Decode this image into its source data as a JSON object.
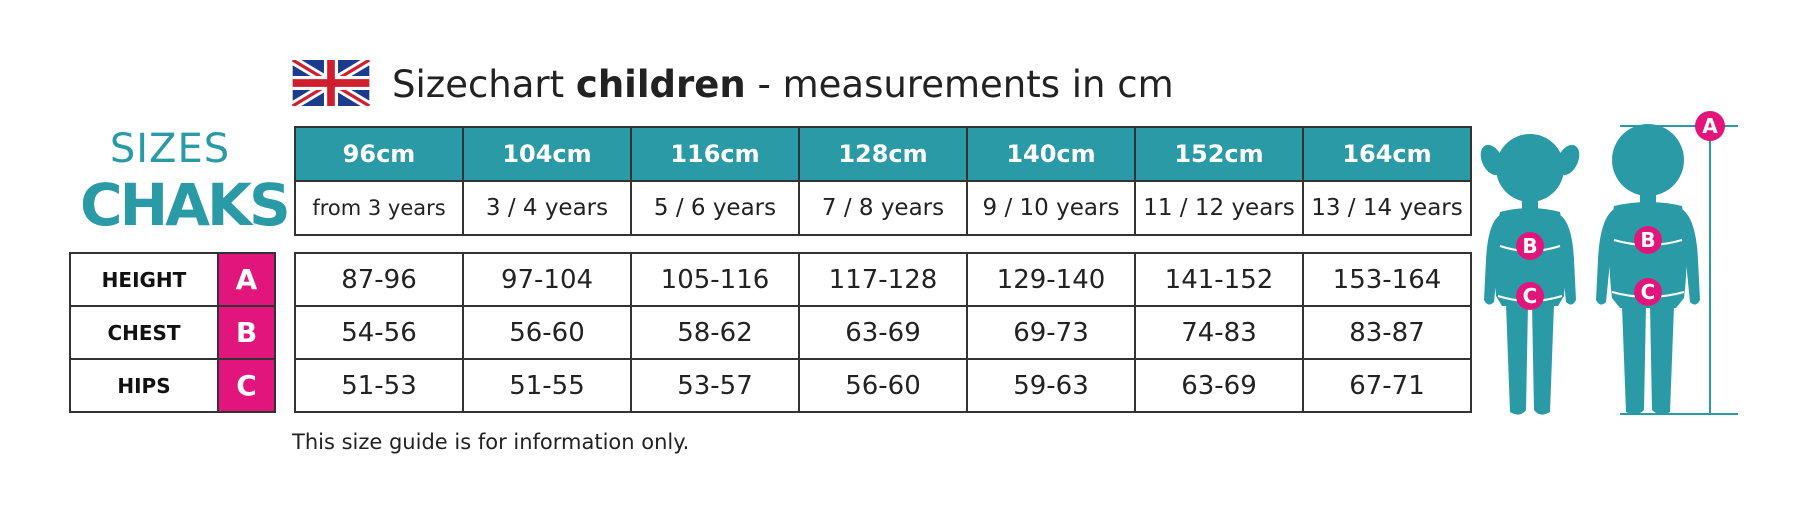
{
  "header": {
    "title_prefix": "Sizechart ",
    "title_bold": "children",
    "title_suffix": " - measurements in cm",
    "flag_icon": "uk-flag-icon"
  },
  "logo": {
    "line1": "SIZES",
    "line2": "CHAKS"
  },
  "sizes": [
    {
      "cm": "96cm",
      "age": "from 3 years"
    },
    {
      "cm": "104cm",
      "age": "3 / 4 years"
    },
    {
      "cm": "116cm",
      "age": "5 / 6 years"
    },
    {
      "cm": "128cm",
      "age": "7 / 8 years"
    },
    {
      "cm": "140cm",
      "age": "9 / 10 years"
    },
    {
      "cm": "152cm",
      "age": "11 / 12 years"
    },
    {
      "cm": "164cm",
      "age": "13 / 14 years"
    }
  ],
  "measurements": [
    {
      "label": "HEIGHT",
      "letter": "A",
      "values": [
        "87-96",
        "97-104",
        "105-116",
        "117-128",
        "129-140",
        "141-152",
        "153-164"
      ]
    },
    {
      "label": "CHEST",
      "letter": "B",
      "values": [
        "54-56",
        "56-60",
        "58-62",
        "63-69",
        "69-73",
        "74-83",
        "83-87"
      ]
    },
    {
      "label": "HIPS",
      "letter": "C",
      "values": [
        "51-53",
        "51-55",
        "53-57",
        "56-60",
        "59-63",
        "63-69",
        "67-71"
      ]
    }
  ],
  "figures": {
    "girl": {
      "markers": [
        "B",
        "C"
      ]
    },
    "boy": {
      "markers": [
        "B",
        "C"
      ]
    },
    "height_marker": "A"
  },
  "note": "This size guide is for information only.",
  "colors": {
    "teal": "#2a9aa6",
    "magenta": "#e2157c",
    "border": "#333333"
  }
}
